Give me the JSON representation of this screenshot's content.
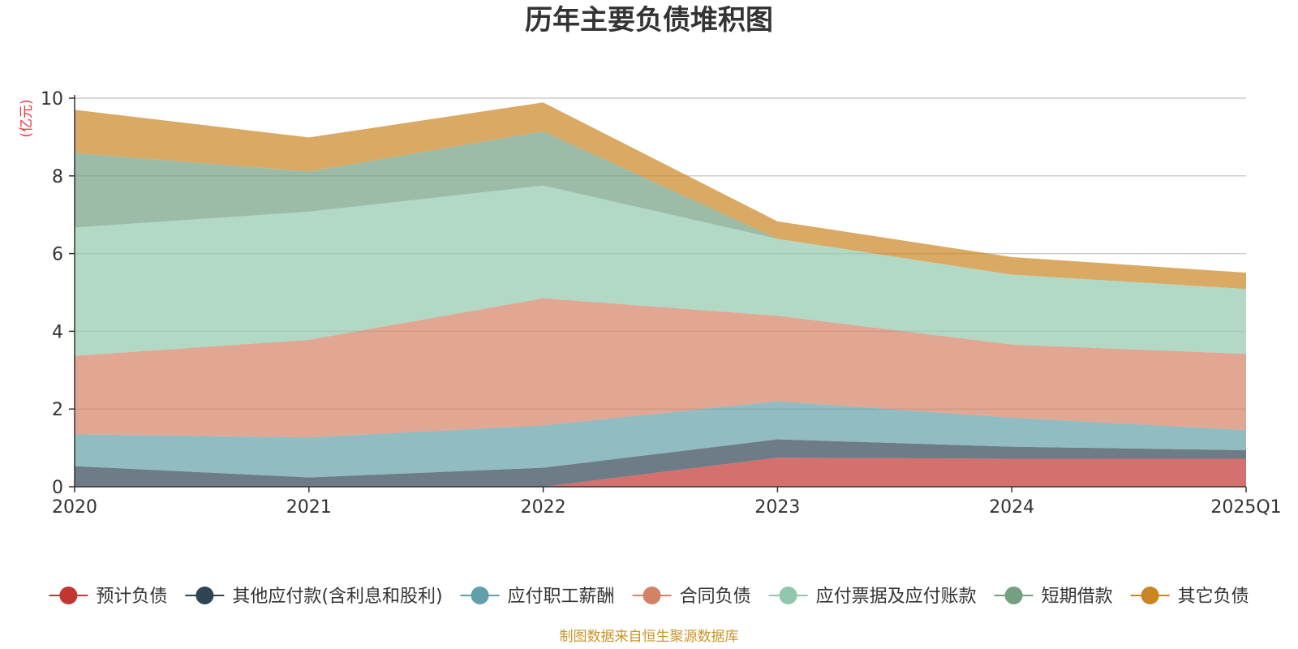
{
  "chart_data": {
    "type": "area",
    "stacked": true,
    "title": "历年主要负债堆积图",
    "ylabel": "(亿元)",
    "xlabel": "",
    "source": "制图数据来自恒生聚源数据库",
    "ylim": [
      0,
      10
    ],
    "yticks": [
      0,
      2,
      4,
      6,
      8,
      10
    ],
    "grid": true,
    "legend_position": "bottom",
    "categories": [
      "2020",
      "2021",
      "2022",
      "2023",
      "2024",
      "2025Q1"
    ],
    "series": [
      {
        "name": "预计负债",
        "color": "#c23531",
        "values": [
          0.0,
          0.0,
          0.0,
          0.75,
          0.72,
          0.72
        ]
      },
      {
        "name": "其他应付款(含利息和股利)",
        "color": "#2f4554",
        "values": [
          0.53,
          0.24,
          0.49,
          0.47,
          0.31,
          0.22
        ]
      },
      {
        "name": "应付职工薪酬",
        "color": "#61a0a8",
        "values": [
          0.82,
          1.03,
          1.09,
          0.98,
          0.75,
          0.52
        ]
      },
      {
        "name": "合同负债",
        "color": "#d48265",
        "values": [
          2.02,
          2.51,
          3.27,
          2.2,
          1.88,
          1.96
        ]
      },
      {
        "name": "应付票据及应付账款",
        "color": "#91c7ae",
        "values": [
          3.3,
          3.3,
          2.9,
          1.98,
          1.8,
          1.67
        ]
      },
      {
        "name": "短期借款",
        "color": "#749f83",
        "values": [
          1.92,
          1.03,
          1.4,
          0.0,
          0.0,
          0.0
        ]
      },
      {
        "name": "其它负债",
        "color": "#ca8622",
        "values": [
          1.11,
          0.88,
          0.74,
          0.45,
          0.45,
          0.42
        ]
      }
    ]
  }
}
